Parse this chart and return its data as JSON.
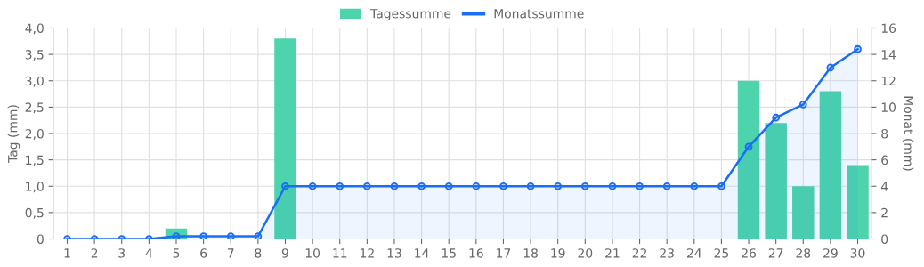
{
  "chart_data": {
    "type": "bar",
    "categories": [
      "1",
      "2",
      "3",
      "4",
      "5",
      "6",
      "7",
      "8",
      "9",
      "10",
      "11",
      "12",
      "13",
      "14",
      "15",
      "16",
      "17",
      "18",
      "19",
      "20",
      "21",
      "22",
      "23",
      "24",
      "25",
      "26",
      "27",
      "28",
      "29",
      "30"
    ],
    "series": [
      {
        "name": "Tagessumme",
        "color": "#4dd4ac",
        "values": [
          0,
          0,
          0,
          0,
          0.2,
          0,
          0,
          0,
          3.8,
          0,
          0,
          0,
          0,
          0,
          0,
          0,
          0,
          0,
          0,
          0,
          0,
          0,
          0,
          0,
          0,
          3.0,
          2.2,
          1.0,
          2.8,
          1.4
        ]
      },
      {
        "name": "Monatssumme",
        "type": "area",
        "axis": "y2",
        "color": "#1a6ef5",
        "values": [
          0,
          0,
          0,
          0,
          0.2,
          0.2,
          0.2,
          0.2,
          4.0,
          4.0,
          4.0,
          4.0,
          4.0,
          4.0,
          4.0,
          4.0,
          4.0,
          4.0,
          4.0,
          4.0,
          4.0,
          4.0,
          4.0,
          4.0,
          4.0,
          7.0,
          9.2,
          10.2,
          13.0,
          14.4
        ]
      }
    ],
    "ylabel": "Tag (mm)",
    "y2label": "Monat (mm)",
    "ylim": [
      0,
      4
    ],
    "yticks": [
      0,
      {
        "value": 0.5,
        "label": "0,5"
      },
      {
        "value": 1.0,
        "label": "1,0"
      },
      {
        "value": 1.5,
        "label": "1,5"
      },
      {
        "value": 2.0,
        "label": "2,0"
      },
      {
        "value": 2.5,
        "label": "2,5"
      },
      {
        "value": 3.0,
        "label": "3,0"
      },
      {
        "value": 3.5,
        "label": "3,5"
      },
      {
        "value": 4.0,
        "label": "4,0"
      }
    ],
    "y2lim": [
      0,
      16
    ],
    "y2ticks": [
      0,
      2,
      4,
      6,
      8,
      10,
      12,
      14,
      16
    ],
    "grid": true,
    "legend": "top",
    "marker": "circle"
  }
}
